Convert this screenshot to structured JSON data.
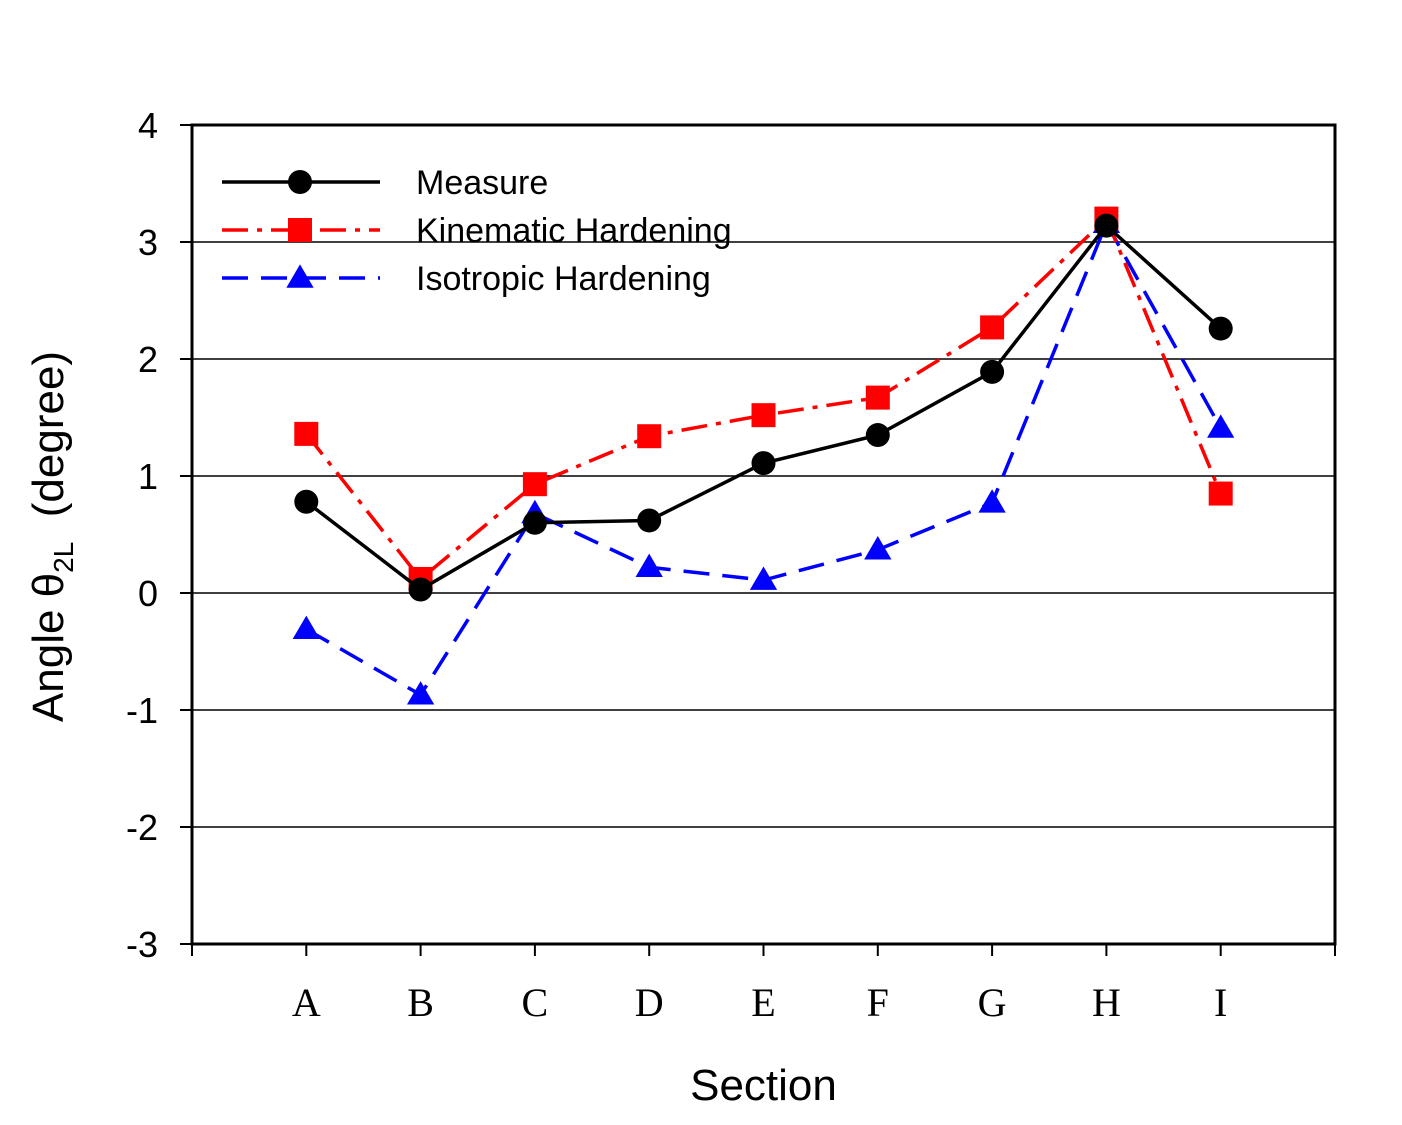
{
  "chart_data": {
    "type": "line",
    "title": "",
    "xlabel": "Section",
    "ylabel": {
      "prefix": "Angle ",
      "symbol": "θ",
      "subscript": "2L",
      "suffix": "  (degree)"
    },
    "categories": [
      "A",
      "B",
      "C",
      "D",
      "E",
      "F",
      "G",
      "H",
      "I"
    ],
    "ylim": [
      -3,
      4
    ],
    "yticks": [
      "-3",
      "-2",
      "-1",
      "0",
      "1",
      "2",
      "3",
      "4"
    ],
    "grid": "horizontal",
    "legend_position": "top-left",
    "series": [
      {
        "name": "Measure",
        "values": [
          0.78,
          0.03,
          0.6,
          0.62,
          1.11,
          1.35,
          1.89,
          3.14,
          2.26
        ],
        "color": "#000000",
        "marker": "circle",
        "line_style": "solid"
      },
      {
        "name": "Kinematic Hardening",
        "values": [
          1.36,
          0.12,
          0.93,
          1.34,
          1.52,
          1.67,
          2.27,
          3.2,
          0.85
        ],
        "color": "#ff0000",
        "marker": "square",
        "line_style": "dash-dot"
      },
      {
        "name": "Isotropic Hardening",
        "values": [
          -0.31,
          -0.87,
          0.68,
          0.22,
          0.11,
          0.37,
          0.77,
          3.16,
          1.41
        ],
        "color": "#0000ff",
        "marker": "triangle",
        "line_style": "dashed"
      }
    ]
  }
}
